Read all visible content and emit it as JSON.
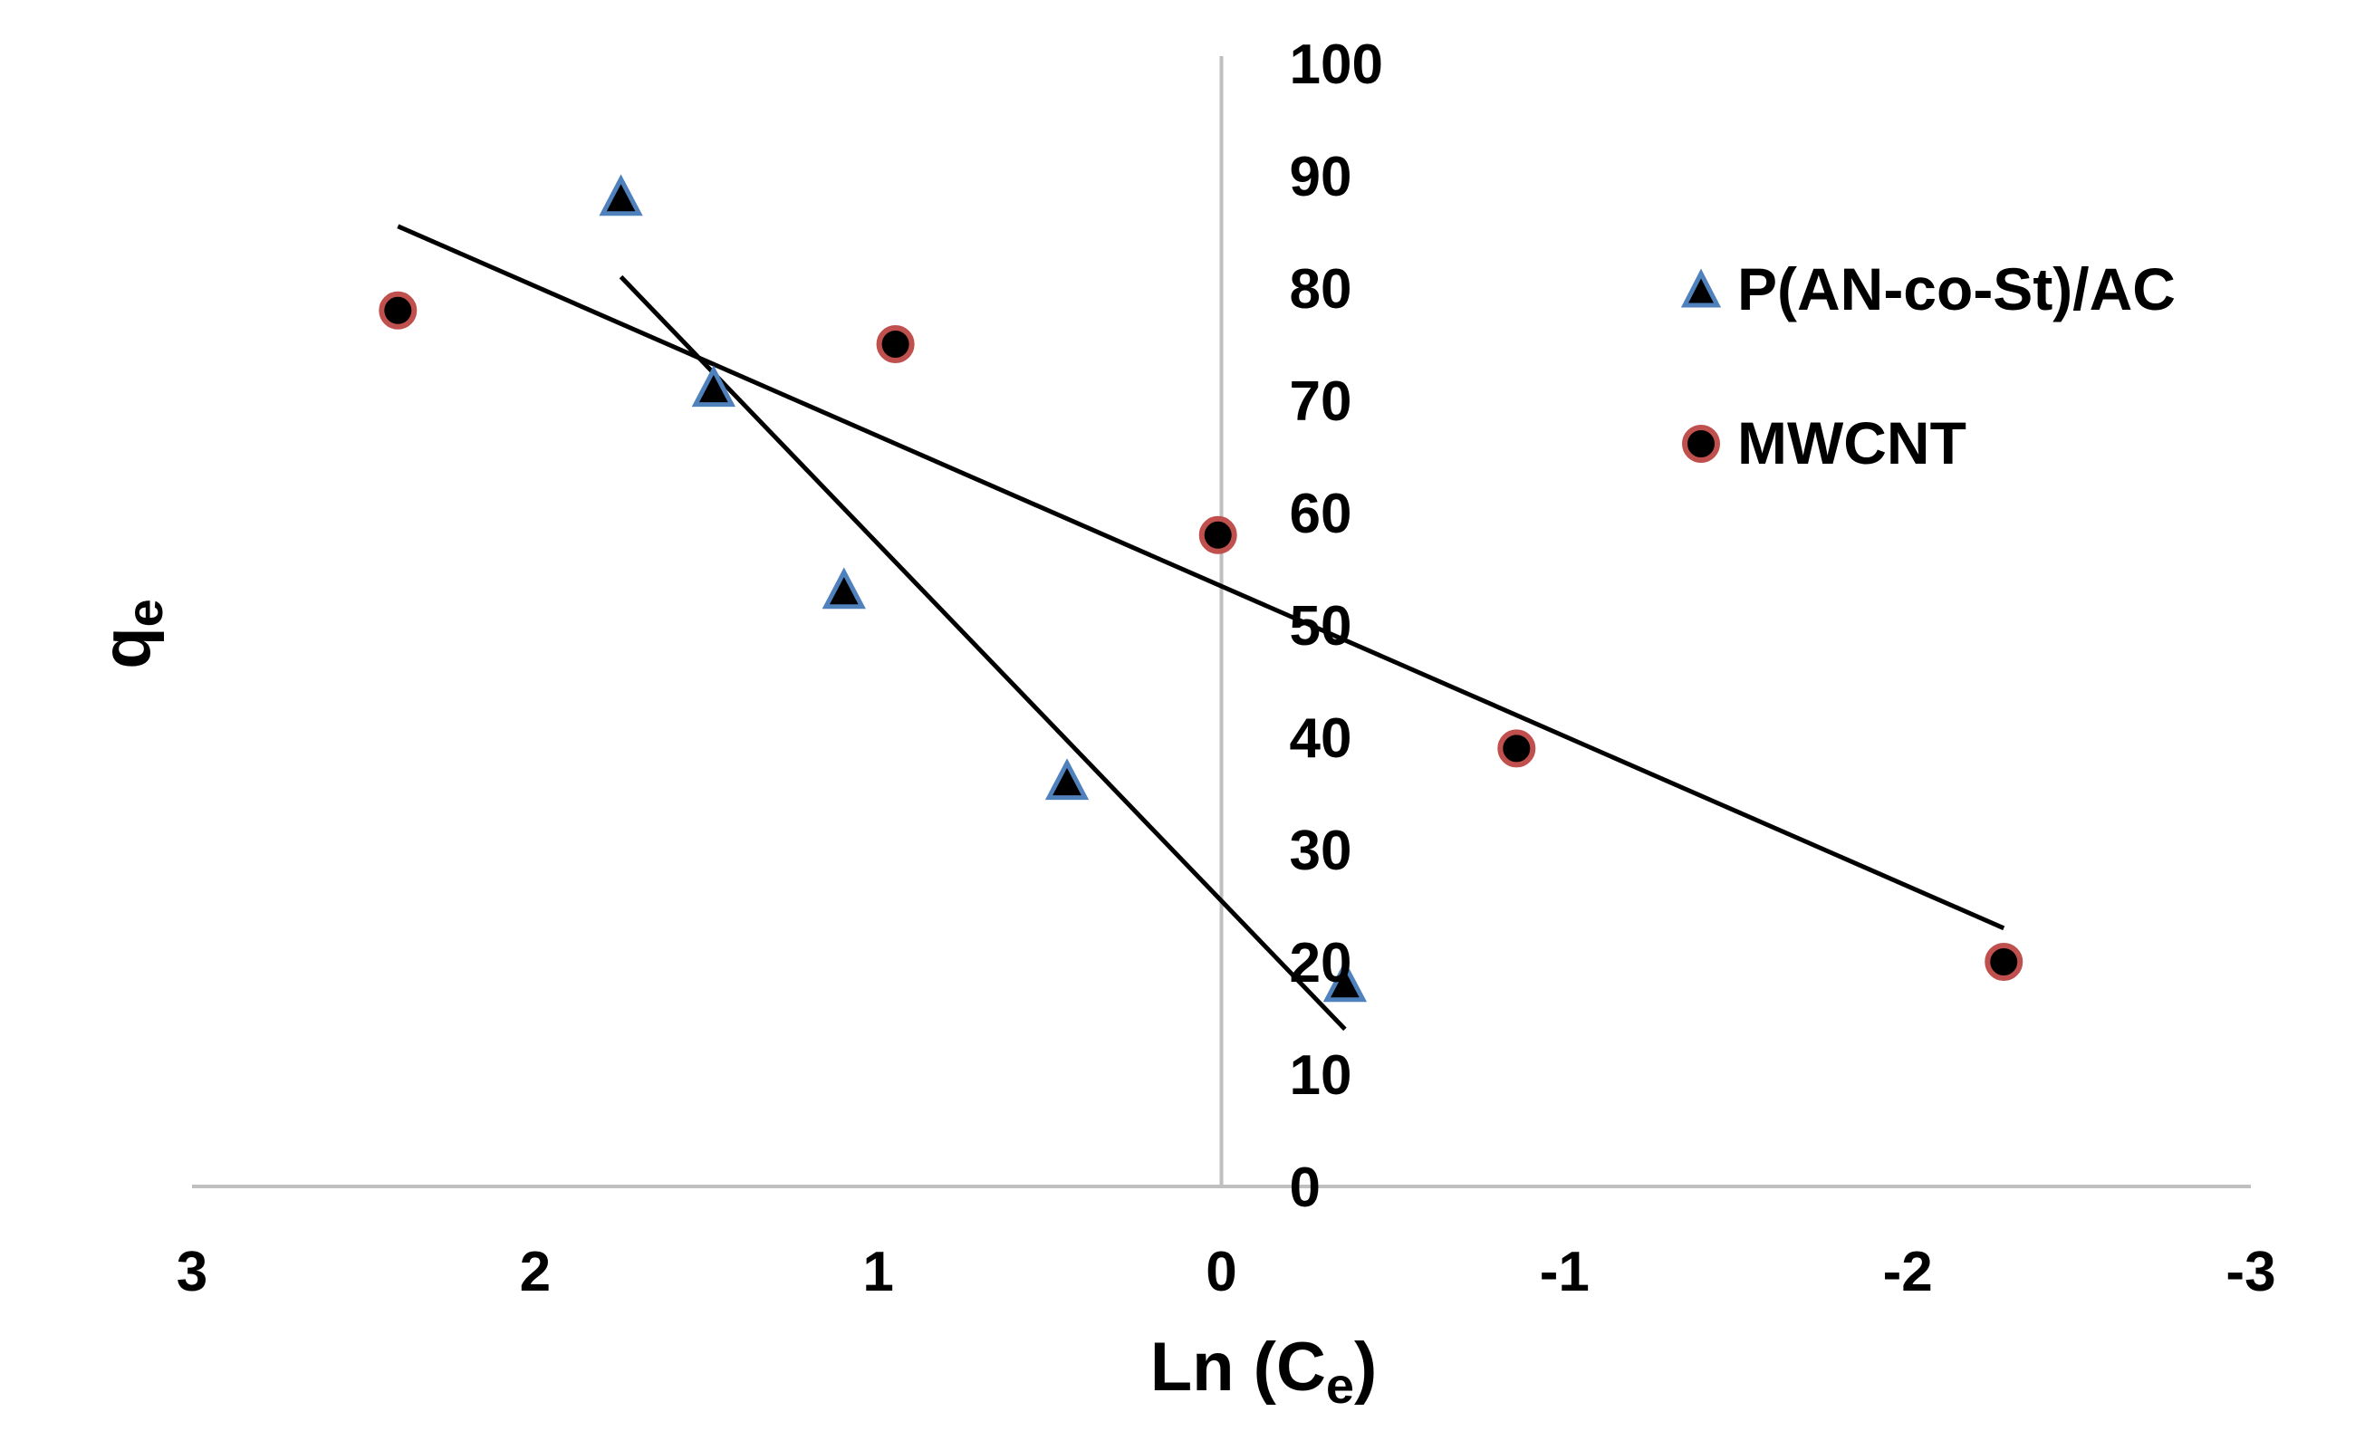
{
  "chart_data": {
    "type": "scatter",
    "title": "",
    "xlabel": "Ln (C",
    "xlabel_sub": "e",
    "xlabel_suffix": ")",
    "ylabel": "q",
    "ylabel_sub": "e",
    "xlim": [
      3,
      -3
    ],
    "ylim": [
      0,
      100
    ],
    "x_reversed": true,
    "grid": false,
    "legend_position": "right",
    "x_ticks": [
      3,
      2,
      1,
      0,
      -1,
      -2,
      -3
    ],
    "x_tick_labels": [
      "3",
      "2",
      "1",
      "0",
      "-1",
      "-2",
      "-3"
    ],
    "y_ticks": [
      0,
      10,
      20,
      30,
      40,
      50,
      60,
      70,
      80,
      90,
      100
    ],
    "y_tick_labels": [
      "0",
      "10",
      "20",
      "30",
      "40",
      "50",
      "60",
      "70",
      "80",
      "90",
      "100"
    ],
    "series": [
      {
        "name": "P(AN-co-St)/AC",
        "marker": "triangle",
        "fill": "#000000",
        "stroke": "#4f81bd",
        "x": [
          1.75,
          1.48,
          1.1,
          0.45,
          -0.36
        ],
        "y": [
          88,
          71,
          53,
          36,
          18
        ],
        "trendline": {
          "x": [
            1.75,
            -0.36
          ],
          "y": [
            81,
            14
          ]
        }
      },
      {
        "name": "MWCNT",
        "marker": "circle",
        "fill": "#000000",
        "stroke": "#c0504d",
        "x": [
          2.4,
          0.95,
          0.01,
          -0.86,
          -2.28
        ],
        "y": [
          78,
          75,
          58,
          39,
          20
        ],
        "trendline": {
          "x": [
            2.4,
            -2.28
          ],
          "y": [
            85.5,
            23
          ]
        }
      }
    ]
  }
}
